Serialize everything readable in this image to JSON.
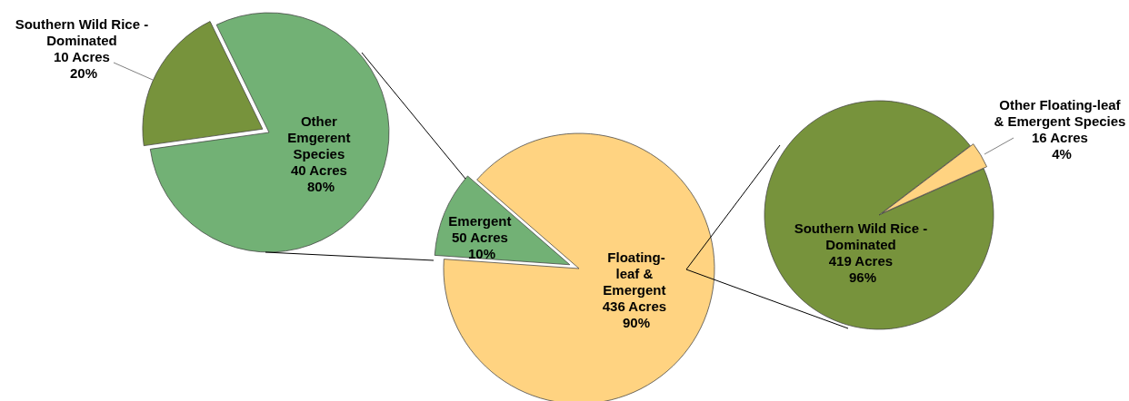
{
  "chart_data": [
    {
      "type": "pie",
      "categories": [
        "Southern Wild Rice - Dominated",
        "Other Emgerent Species"
      ],
      "values": [
        10,
        40
      ],
      "colors": [
        "#77933c",
        "#72b175"
      ],
      "value_labels": [
        "10 Acres\n20%",
        "40 Acres\n80%"
      ]
    },
    {
      "type": "pie",
      "categories": [
        "Emergent",
        "Floating-leaf & Emergent"
      ],
      "values": [
        50,
        436
      ],
      "colors": [
        "#72b175",
        "#ffd381"
      ],
      "value_labels": [
        "50 Acres\n10%",
        "436 Acres\n90%"
      ]
    },
    {
      "type": "pie",
      "categories": [
        "Southern Wild Rice - Dominated",
        "Other Floating-leaf & Emergent Species"
      ],
      "values": [
        419,
        16
      ],
      "colors": [
        "#77933c",
        "#ffd381"
      ],
      "value_labels": [
        "419 Acres\n96%",
        "16 Acres\n4%"
      ]
    }
  ]
}
